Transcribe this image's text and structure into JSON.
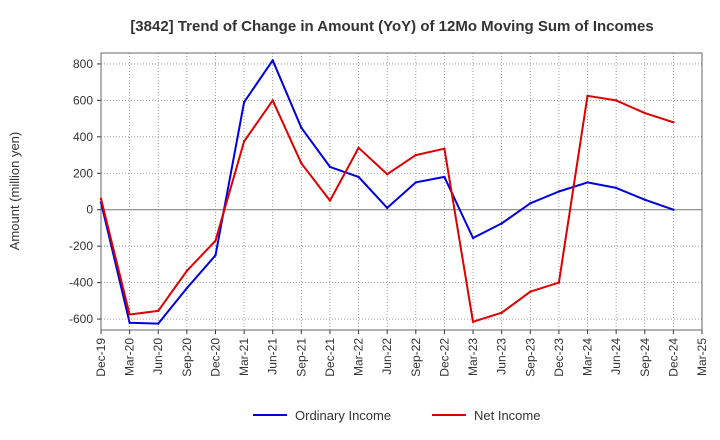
{
  "chart_data": {
    "type": "line",
    "title": "[3842]  Trend of Change in Amount (YoY) of 12Mo Moving Sum of Incomes",
    "xlabel": "",
    "ylabel": "Amount (million yen)",
    "categories": [
      "Dec-19",
      "Mar-20",
      "Jun-20",
      "Sep-20",
      "Dec-20",
      "Mar-21",
      "Jun-21",
      "Sep-21",
      "Dec-21",
      "Mar-22",
      "Jun-22",
      "Sep-22",
      "Dec-22",
      "Mar-23",
      "Jun-23",
      "Sep-23",
      "Dec-23",
      "Mar-24",
      "Jun-24",
      "Sep-24",
      "Dec-24",
      "Mar-25"
    ],
    "yticks": [
      -600,
      -400,
      -200,
      0,
      200,
      400,
      600,
      800
    ],
    "ylim": [
      -660,
      860
    ],
    "grid": true,
    "legend_position": "bottom",
    "series": [
      {
        "name": "Ordinary Income",
        "color": "#0000dd",
        "values": [
          40,
          -620,
          -625,
          -430,
          -250,
          590,
          820,
          450,
          235,
          180,
          10,
          150,
          180,
          -155,
          -75,
          35,
          100,
          150,
          120,
          55,
          0,
          null
        ]
      },
      {
        "name": "Net Income",
        "color": "#dd0000",
        "values": [
          60,
          -575,
          -555,
          -335,
          -170,
          375,
          600,
          255,
          50,
          340,
          195,
          300,
          335,
          -615,
          -565,
          -450,
          -400,
          625,
          600,
          530,
          480,
          null
        ]
      }
    ]
  }
}
